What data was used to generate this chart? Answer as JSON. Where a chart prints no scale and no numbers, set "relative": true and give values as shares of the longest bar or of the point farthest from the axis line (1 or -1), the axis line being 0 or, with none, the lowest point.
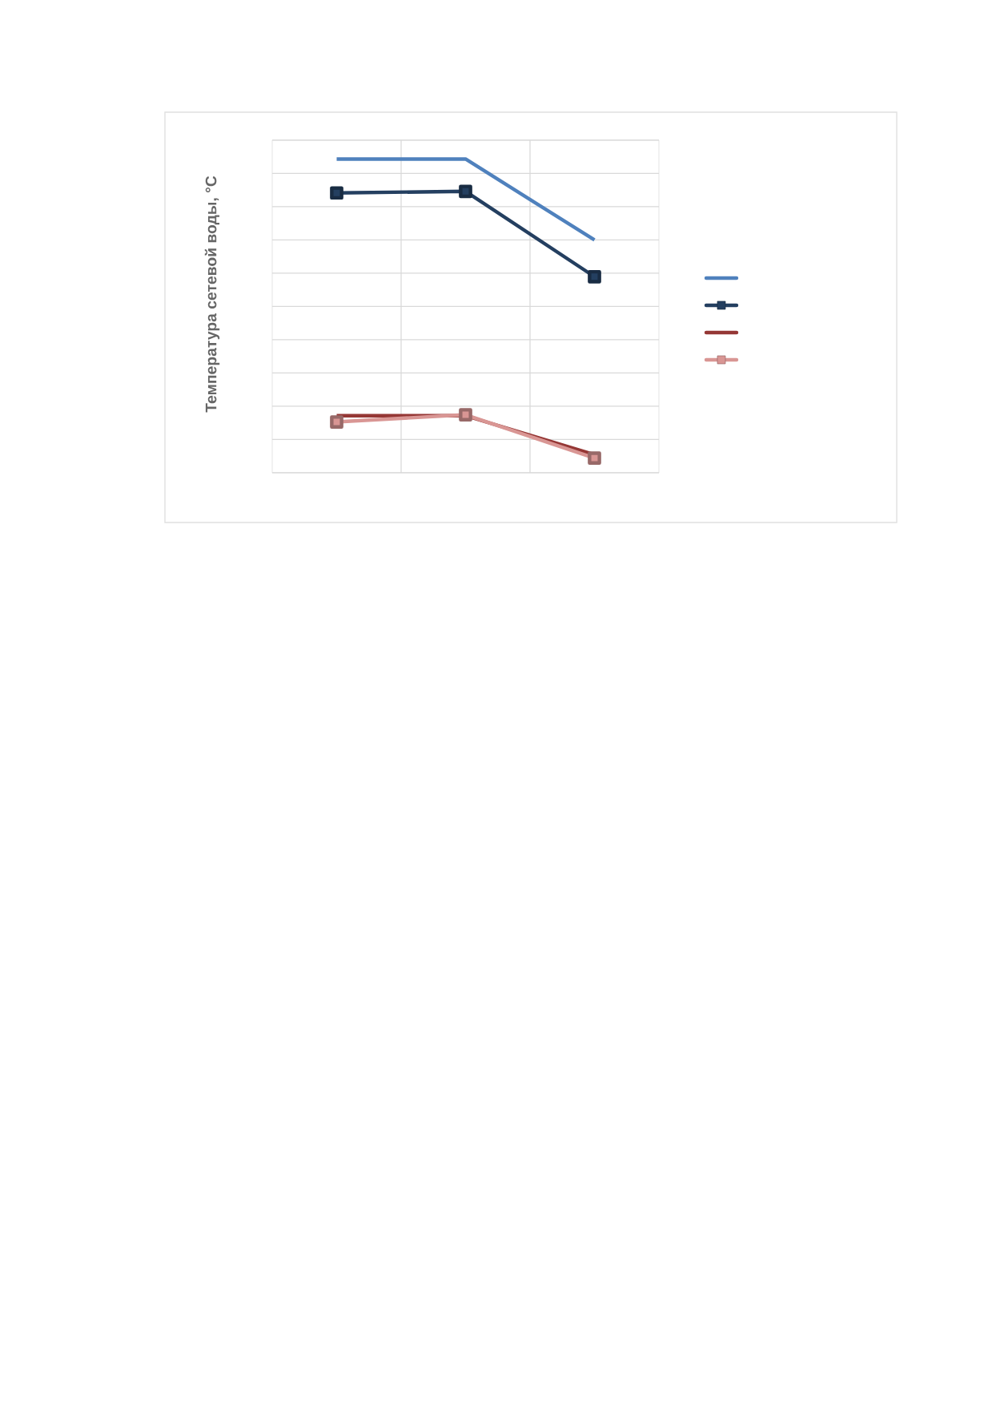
{
  "chart_data": {
    "type": "line",
    "ylabel": "Температура сетевой воды, °С",
    "categories": [
      null,
      null,
      null
    ],
    "relative": true,
    "grid": true,
    "series": [
      {
        "color": "#4f81bd",
        "values": [
          1,
          1,
          0.742
        ],
        "marker": "none"
      },
      {
        "color": "#243f60",
        "values": [
          0.892,
          0.897,
          0.625
        ],
        "marker": "square"
      },
      {
        "color": "#953735",
        "values": [
          0.182,
          0.182,
          0.058
        ],
        "marker": "none"
      },
      {
        "color": "#d99694",
        "values": [
          0.162,
          0.185,
          0.047
        ],
        "marker": "square"
      }
    ]
  }
}
